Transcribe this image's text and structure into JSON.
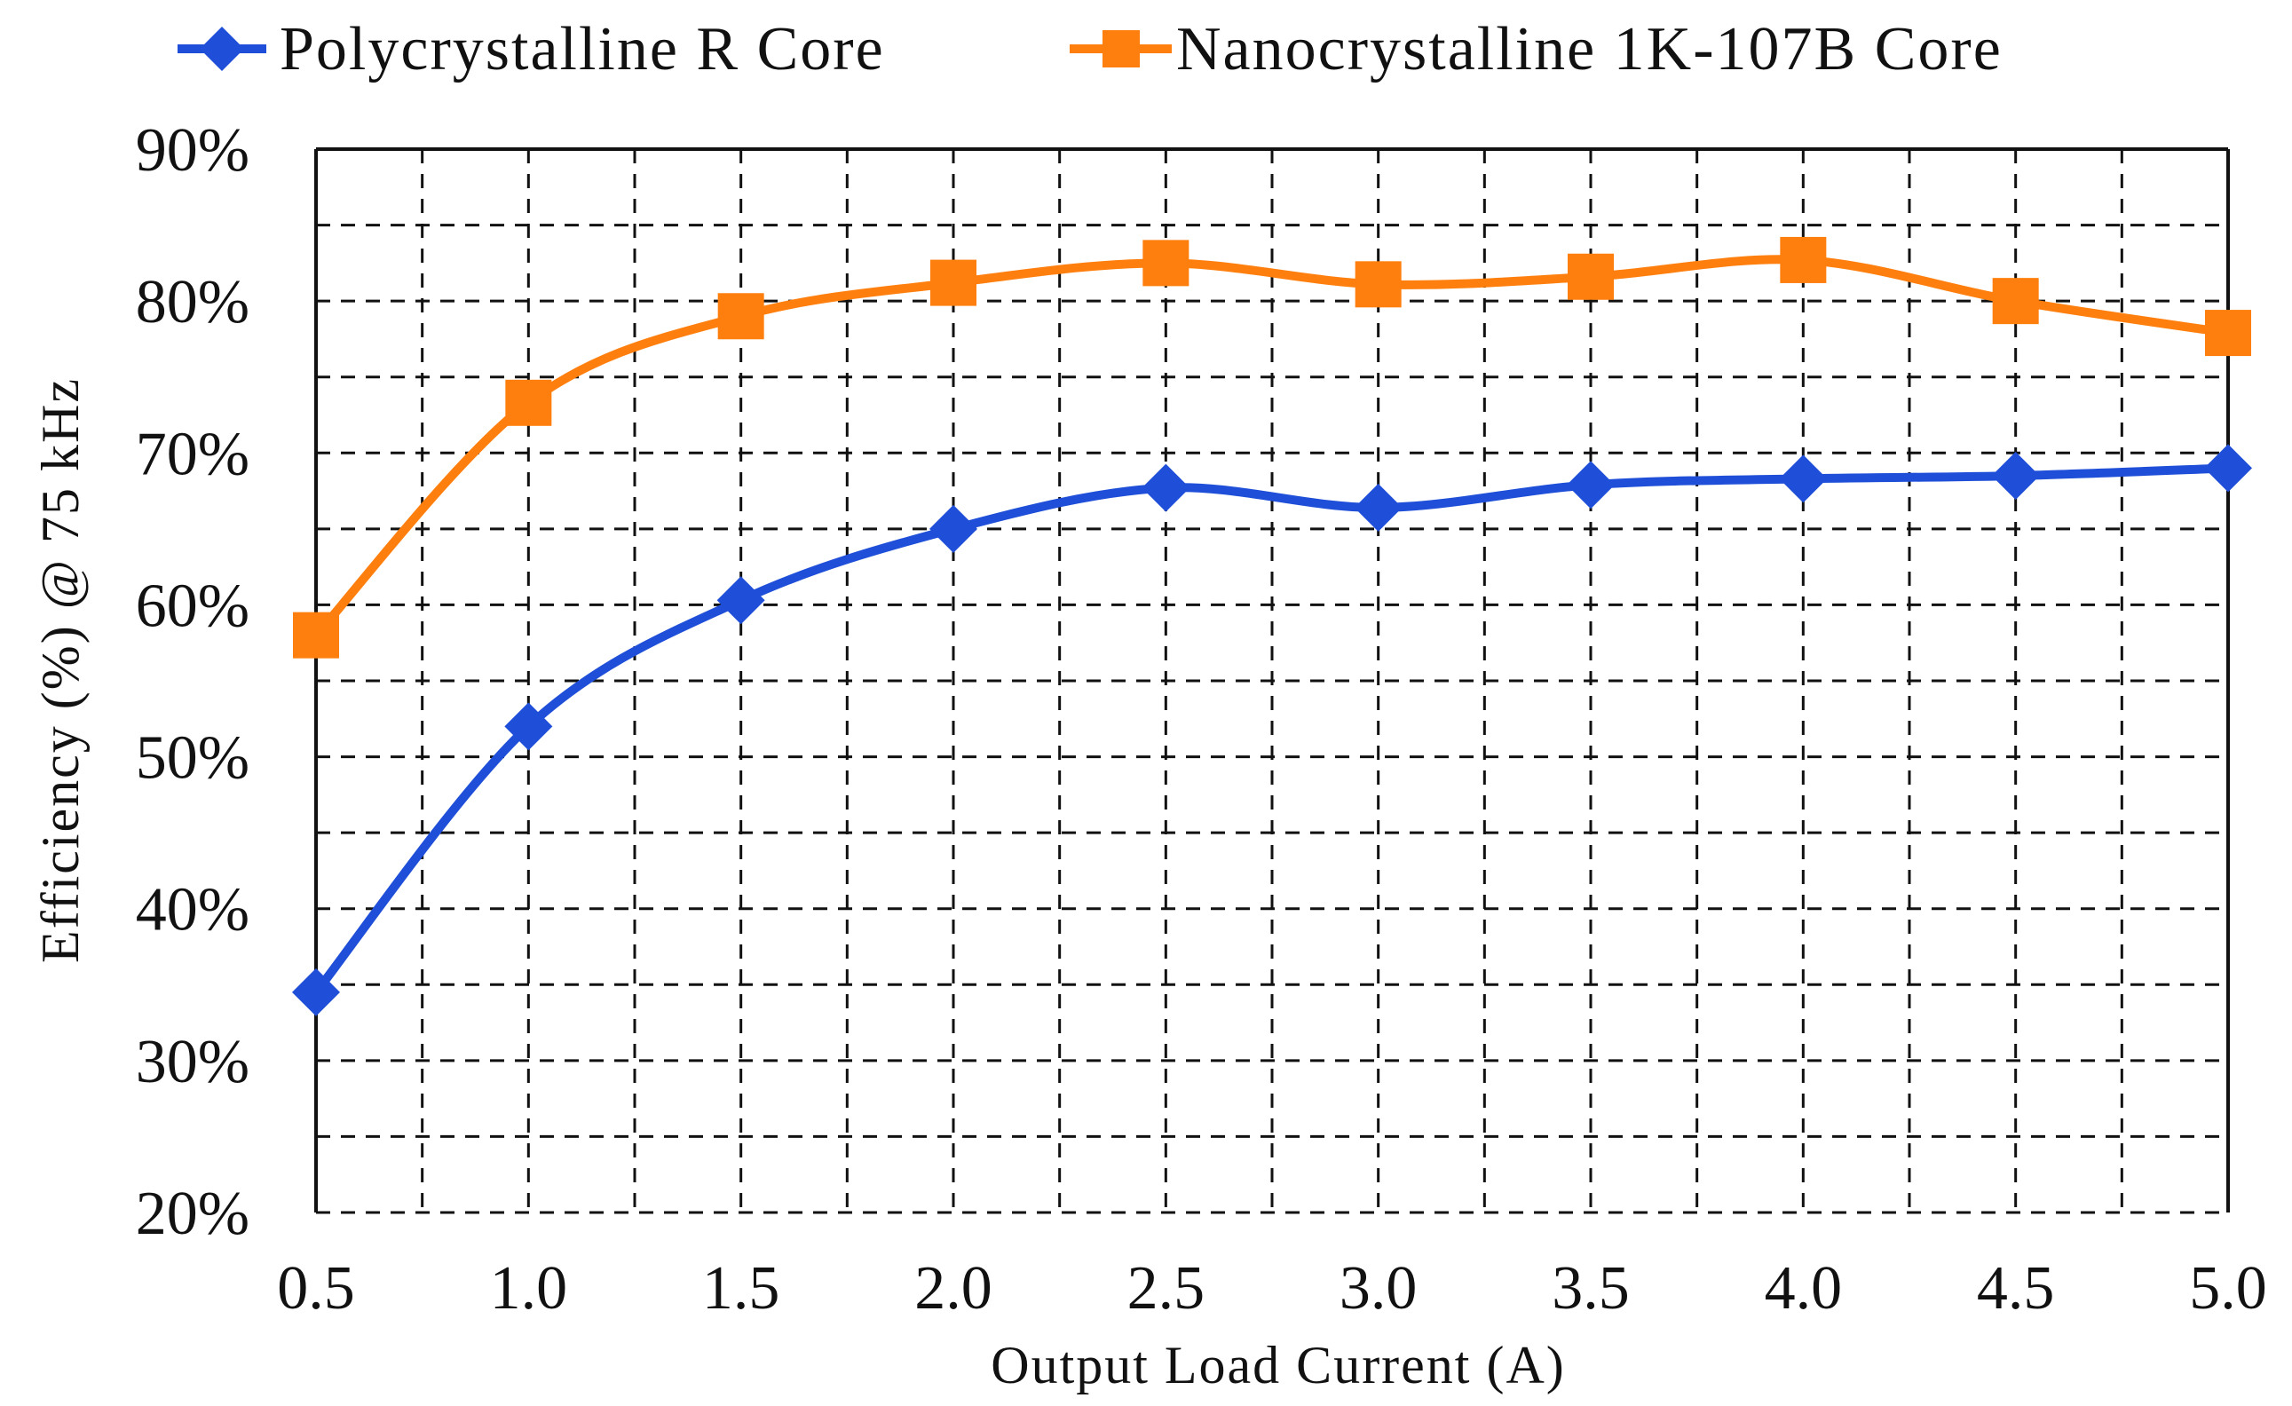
{
  "chart_data": {
    "type": "line",
    "title": "",
    "xlabel": "Output Load Current (A)",
    "ylabel": "Efficiency (%) @ 75 kHz",
    "categories": [
      "0.5",
      "1.0",
      "1.5",
      "2.0",
      "2.5",
      "3.0",
      "3.5",
      "4.0",
      "4.5",
      "5.0"
    ],
    "x": [
      0.5,
      1.0,
      1.5,
      2.0,
      2.5,
      3.0,
      3.5,
      4.0,
      4.5,
      5.0
    ],
    "xlim": [
      0.5,
      5.0
    ],
    "ylim": [
      20,
      90
    ],
    "yticks": [
      20,
      30,
      40,
      50,
      60,
      70,
      80,
      90
    ],
    "ytick_labels": [
      "20%",
      "30%",
      "40%",
      "50%",
      "60%",
      "70%",
      "80%",
      "90%"
    ],
    "grid": true,
    "legend_position": "top",
    "series": [
      {
        "name": "Polycrystalline R Core",
        "color": "#1F4FD8",
        "marker": "diamond",
        "values": [
          34.5,
          52.0,
          60.3,
          65.0,
          67.7,
          66.4,
          67.9,
          68.3,
          68.5,
          69.0
        ]
      },
      {
        "name": "Nanocrystalline 1K-107B Core",
        "color": "#FF7F0E",
        "marker": "square",
        "values": [
          58.0,
          73.3,
          79.0,
          81.2,
          82.5,
          81.1,
          81.6,
          82.7,
          80.0,
          77.9
        ]
      }
    ]
  }
}
